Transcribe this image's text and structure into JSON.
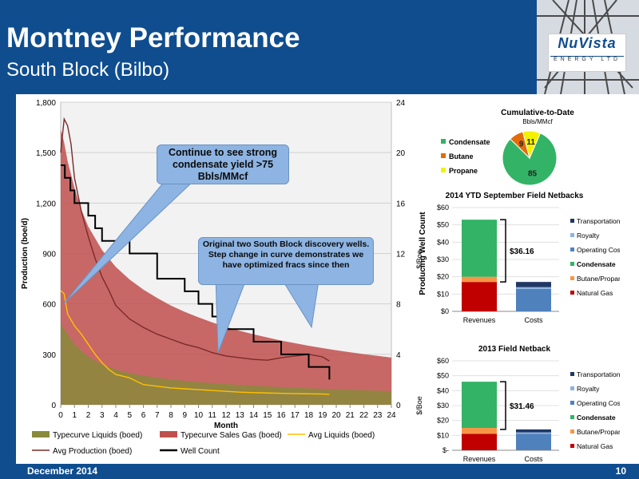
{
  "slide": {
    "title": "Montney Performance",
    "subtitle": "South Block (Bilbo)",
    "footer_date": "December 2014",
    "page_number": "10",
    "logo_text": "NuVista",
    "logo_sub": "ENERGY LTD",
    "colors": {
      "brand": "#0f4d8f",
      "header_bg": "#0f4d8f"
    }
  },
  "callouts": {
    "condensate": "Continue to see strong condensate yield >75 Bbls/MMcf",
    "discovery": "Original two South Block discovery wells. Step change in curve demonstrates we have optimized fracs since then"
  },
  "chart_data": [
    {
      "type": "line",
      "xlabel": "Month",
      "ylabel": "Production (boe/d)",
      "y2label": "Producing Well Count",
      "xlim": [
        0,
        24
      ],
      "ylim": [
        0,
        1800
      ],
      "y2lim": [
        0,
        24
      ],
      "x_ticks": [
        "0",
        "1",
        "2",
        "3",
        "4",
        "5",
        "6",
        "7",
        "8",
        "9",
        "10",
        "11",
        "12",
        "13",
        "14",
        "15",
        "16",
        "17",
        "18",
        "19",
        "20",
        "21",
        "22",
        "23",
        "24"
      ],
      "y_ticks": [
        "0",
        "300",
        "600",
        "900",
        "1,200",
        "1,500",
        "1,800"
      ],
      "y2_ticks": [
        "0",
        "4",
        "8",
        "12",
        "16",
        "20",
        "24"
      ],
      "grid": true,
      "legend_position": "bottom",
      "series": [
        {
          "name": "Typecurve Liquids (boed)",
          "type": "area",
          "color": "#8a8a3c",
          "x": [
            0,
            0.25,
            0.5,
            1,
            1.5,
            2,
            3,
            4,
            5,
            6,
            7,
            8,
            9,
            10,
            11,
            12,
            13,
            14,
            15,
            16,
            17,
            18,
            19,
            20,
            21,
            22,
            23,
            24
          ],
          "y": [
            480,
            450,
            420,
            360,
            320,
            285,
            240,
            210,
            188,
            172,
            160,
            150,
            142,
            135,
            128,
            123,
            118,
            113,
            109,
            105,
            101,
            98,
            95,
            92,
            89,
            86,
            84,
            81
          ]
        },
        {
          "name": "Typecurve Sales Gas (boed)",
          "type": "area",
          "color": "#c0504d",
          "x": [
            0,
            0.25,
            0.5,
            1,
            1.5,
            2,
            3,
            4,
            5,
            6,
            7,
            8,
            9,
            10,
            11,
            12,
            13,
            14,
            15,
            16,
            17,
            18,
            19,
            20,
            21,
            22,
            23,
            24
          ],
          "y": [
            1640,
            1560,
            1450,
            1290,
            1160,
            1060,
            920,
            820,
            745,
            685,
            635,
            590,
            553,
            520,
            490,
            463,
            440,
            419,
            400,
            382,
            366,
            351,
            337,
            324,
            312,
            301,
            291,
            281
          ]
        },
        {
          "name": "Avg Liquids (boed)",
          "type": "line",
          "color": "#ffc000",
          "x": [
            0,
            0.25,
            0.5,
            1,
            1.5,
            2,
            2.5,
            3,
            3.5,
            4,
            5,
            6,
            7,
            8,
            9,
            10,
            11,
            12,
            13,
            14,
            15,
            16,
            17,
            18,
            19,
            19.5
          ],
          "y": [
            680,
            660,
            540,
            470,
            420,
            360,
            300,
            250,
            210,
            180,
            160,
            120,
            110,
            100,
            95,
            90,
            85,
            80,
            75,
            72,
            70,
            68,
            66,
            65,
            64,
            62
          ]
        },
        {
          "name": "Avg Production (boed)",
          "type": "line",
          "color": "#7b2a2a",
          "x": [
            0,
            0.25,
            0.5,
            0.75,
            1,
            1.5,
            2,
            2.5,
            3,
            3.5,
            4,
            5,
            6,
            7,
            8,
            9,
            10,
            11,
            12,
            13,
            14,
            15,
            16,
            17,
            18,
            19,
            19.5
          ],
          "y": [
            1500,
            1700,
            1660,
            1550,
            1350,
            1150,
            1000,
            870,
            760,
            680,
            590,
            510,
            460,
            420,
            390,
            360,
            340,
            310,
            290,
            280,
            270,
            265,
            280,
            290,
            300,
            285,
            260
          ]
        },
        {
          "name": "Well Count",
          "type": "step",
          "axis": "y2",
          "color": "#000000",
          "x": [
            0,
            0.3,
            0.7,
            1,
            1.4,
            2,
            2.5,
            3,
            4,
            5,
            6,
            7,
            8,
            9,
            10,
            11,
            12,
            13,
            14,
            15,
            16,
            17,
            18,
            19,
            19.5
          ],
          "y": [
            19,
            18,
            17,
            16,
            16,
            15,
            14,
            13,
            13,
            12,
            12,
            10,
            10,
            9,
            8,
            7,
            6,
            6,
            5,
            5,
            4,
            4,
            3,
            3,
            2
          ]
        }
      ]
    },
    {
      "type": "pie",
      "title": "Cumulative-to-Date",
      "subtitle": "Bbls/MMcf",
      "legend_position": "left",
      "categories": [
        "Condensate",
        "Butane",
        "Propane"
      ],
      "values": [
        85,
        9,
        11
      ],
      "colors": [
        "#33b366",
        "#e36c09",
        "#f2f200"
      ]
    },
    {
      "type": "bar",
      "stacked": true,
      "title": "2014 YTD September Field Netbacks",
      "ylabel": "$/Boe",
      "categories": [
        "Revenues",
        "Costs"
      ],
      "ylim": [
        0,
        60
      ],
      "y_ticks": [
        "$0",
        "$10",
        "$20",
        "$30",
        "$40",
        "$50",
        "$60"
      ],
      "annotation": "$36.16",
      "legend_position": "right",
      "series": [
        {
          "name": "Natural Gas",
          "color": "#c00000",
          "values": [
            17,
            0
          ]
        },
        {
          "name": "Butane/Propane",
          "color": "#f79646",
          "values": [
            3,
            0
          ]
        },
        {
          "name": "Condensate",
          "color": "#33b366",
          "values": [
            33,
            0
          ]
        },
        {
          "name": "Operating Costs",
          "color": "#4f81bd",
          "values": [
            0,
            13
          ]
        },
        {
          "name": "Royalty",
          "color": "#8db3e2",
          "values": [
            0,
            1
          ]
        },
        {
          "name": "Transportation",
          "color": "#1f3864",
          "values": [
            0,
            3
          ]
        }
      ]
    },
    {
      "type": "bar",
      "stacked": true,
      "title": "2013 Field Netback",
      "ylabel": "$/Boe",
      "categories": [
        "Revenues",
        "Costs"
      ],
      "ylim": [
        0,
        60
      ],
      "y_ticks": [
        "$-",
        "$10",
        "$20",
        "$30",
        "$40",
        "$50",
        "$60"
      ],
      "annotation": "$31.46",
      "legend_position": "right",
      "series": [
        {
          "name": "Natural Gas",
          "color": "#c00000",
          "values": [
            11,
            0
          ]
        },
        {
          "name": "Butane/Propane",
          "color": "#f79646",
          "values": [
            4,
            0
          ]
        },
        {
          "name": "Condensate",
          "color": "#33b366",
          "values": [
            31,
            0
          ]
        },
        {
          "name": "Operating Costs",
          "color": "#4f81bd",
          "values": [
            0,
            11
          ]
        },
        {
          "name": "Royalty",
          "color": "#8db3e2",
          "values": [
            0,
            1
          ]
        },
        {
          "name": "Transportation",
          "color": "#1f3864",
          "values": [
            0,
            2
          ]
        }
      ]
    }
  ]
}
